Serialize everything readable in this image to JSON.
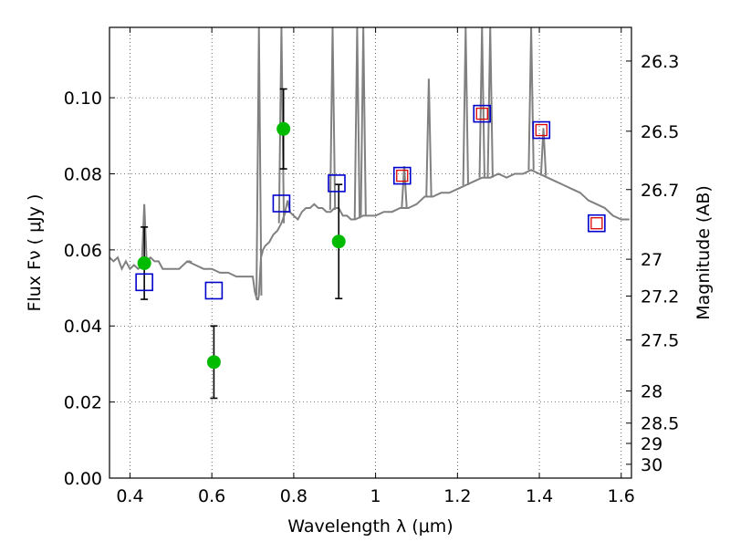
{
  "chart_data": {
    "type": "scatter",
    "xlabel": "Wavelength  λ (μm)",
    "ylabel": "Flux  Fν  ( μJy )",
    "y2label": "Magnitude (AB)",
    "xlim": [
      0.35,
      1.625
    ],
    "ylim": [
      0.0,
      0.1185
    ],
    "grid": true,
    "x_ticks": [
      "0.4",
      "0.6",
      "0.8",
      "1",
      "1.2",
      "1.4",
      "1.6"
    ],
    "y_ticks": [
      "0.00",
      "0.02",
      "0.04",
      "0.06",
      "0.08",
      "0.10"
    ],
    "mag_ticks": [
      "26.3",
      "26.5",
      "26.7",
      "27",
      "27.2",
      "27.5",
      "28",
      "28.5",
      "29",
      "30"
    ],
    "colors": {
      "model": "#808080",
      "photometry": "#00bb00",
      "model_band_flux": "#0000cc",
      "red_squares": "#dd0000",
      "errorbar": "#000000"
    },
    "series": [
      {
        "kind": "line",
        "x": [
          0.35,
          0.36,
          0.37,
          0.38,
          0.39,
          0.4,
          0.41,
          0.42,
          0.43,
          0.44,
          0.45,
          0.46,
          0.47,
          0.48,
          0.5,
          0.52,
          0.54,
          0.56,
          0.58,
          0.6,
          0.62,
          0.64,
          0.66,
          0.68,
          0.7,
          0.705,
          0.71,
          0.713,
          0.715,
          0.72,
          0.725,
          0.73,
          0.74,
          0.75,
          0.76,
          0.77,
          0.78,
          0.79,
          0.8,
          0.81,
          0.82,
          0.83,
          0.84,
          0.85,
          0.86,
          0.87,
          0.88,
          0.89,
          0.9,
          0.91,
          0.92,
          0.93,
          0.94,
          0.95,
          0.97,
          1.0,
          1.02,
          1.04,
          1.06,
          1.08,
          1.1,
          1.12,
          1.14,
          1.16,
          1.18,
          1.2,
          1.22,
          1.24,
          1.26,
          1.28,
          1.3,
          1.32,
          1.34,
          1.36,
          1.38,
          1.4,
          1.42,
          1.44,
          1.46,
          1.48,
          1.5,
          1.52,
          1.54,
          1.56,
          1.58,
          1.6,
          1.62
        ],
        "y": [
          0.058,
          0.057,
          0.058,
          0.055,
          0.057,
          0.055,
          0.056,
          0.055,
          0.056,
          0.057,
          0.058,
          0.057,
          0.057,
          0.055,
          0.055,
          0.055,
          0.057,
          0.056,
          0.055,
          0.055,
          0.054,
          0.054,
          0.053,
          0.053,
          0.053,
          0.049,
          0.047,
          0.047,
          0.048,
          0.058,
          0.06,
          0.061,
          0.062,
          0.064,
          0.065,
          0.067,
          0.07,
          0.07,
          0.069,
          0.068,
          0.07,
          0.071,
          0.071,
          0.072,
          0.071,
          0.071,
          0.07,
          0.07,
          0.071,
          0.071,
          0.069,
          0.069,
          0.068,
          0.068,
          0.069,
          0.069,
          0.07,
          0.07,
          0.071,
          0.071,
          0.072,
          0.074,
          0.074,
          0.075,
          0.075,
          0.076,
          0.077,
          0.078,
          0.079,
          0.079,
          0.08,
          0.079,
          0.08,
          0.08,
          0.081,
          0.08,
          0.079,
          0.078,
          0.077,
          0.076,
          0.075,
          0.073,
          0.072,
          0.071,
          0.069,
          0.068,
          0.068
        ]
      },
      {
        "kind": "emission-lines",
        "x": [
          0.435,
          0.545,
          0.715,
          0.77,
          0.785,
          0.895,
          0.955,
          0.97,
          1.07,
          1.13,
          1.22,
          1.26,
          1.28,
          1.38,
          1.41
        ],
        "y": [
          0.072,
          0.057,
          0.1185,
          0.1185,
          0.073,
          0.1185,
          0.1185,
          0.1185,
          0.082,
          0.105,
          0.1185,
          0.1185,
          0.1185,
          0.1185,
          0.092
        ]
      },
      {
        "kind": "errorbar-points",
        "x": [
          0.435,
          0.605,
          0.775,
          0.91
        ],
        "y": [
          0.0565,
          0.0305,
          0.0918,
          0.0622
        ],
        "yerr": [
          0.0095,
          0.0095,
          0.0105,
          0.015
        ]
      },
      {
        "kind": "open-squares",
        "x": [
          0.435,
          0.605,
          0.77,
          0.905,
          1.065,
          1.26,
          1.405,
          1.54
        ],
        "y": [
          0.0515,
          0.0493,
          0.0722,
          0.0775,
          0.0795,
          0.0958,
          0.0915,
          0.067
        ]
      },
      {
        "kind": "small-open-squares",
        "x": [
          1.065,
          1.26,
          1.405,
          1.54
        ],
        "y": [
          0.0795,
          0.0958,
          0.0915,
          0.067
        ]
      }
    ]
  }
}
